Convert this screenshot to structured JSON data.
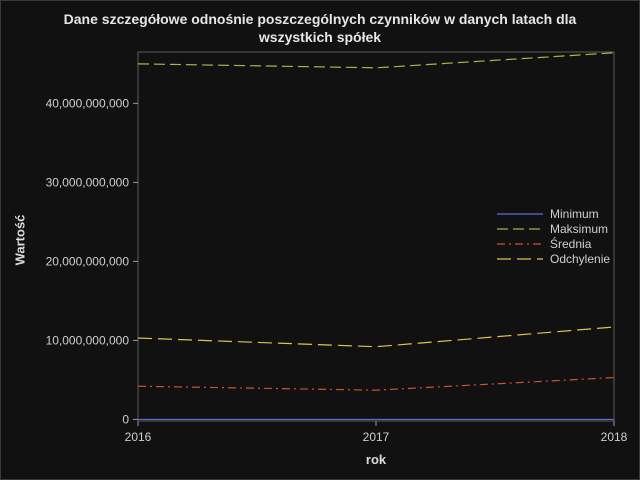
{
  "chart_data": {
    "type": "line",
    "title_line1": "Dane szczegółowe odnośnie poszczególnych czynników w danych latach dla",
    "title_line2": "wszystkich spółek",
    "xlabel": "rok",
    "ylabel": "Wartość",
    "x": [
      2016,
      2017,
      2018
    ],
    "x_tick_labels": [
      "2016",
      "2017",
      "2018"
    ],
    "y_ticks": [
      0,
      10000000000,
      20000000000,
      30000000000,
      40000000000
    ],
    "y_tick_labels": [
      "0",
      "10,000,000,000",
      "20,000,000,000",
      "30,000,000,000",
      "40,000,000,000"
    ],
    "ylim": [
      -200000000,
      46500000000
    ],
    "xlim": [
      2016,
      2018
    ],
    "grid": false,
    "legend_position": "right",
    "series": [
      {
        "name": "Minimum",
        "values": [
          0,
          0,
          0
        ],
        "color": "#5b6fd6",
        "dash": "solid"
      },
      {
        "name": "Maksimum",
        "values": [
          45000000000,
          44500000000,
          46400000000
        ],
        "color": "#a8b34a",
        "dash": "long-dash"
      },
      {
        "name": "Średnia",
        "values": [
          4200000000,
          3700000000,
          5300000000
        ],
        "color": "#c9542e",
        "dash": "dash-dot"
      },
      {
        "name": "Odchylenie",
        "values": [
          10300000000,
          9200000000,
          11700000000
        ],
        "color": "#e0c451",
        "dash": "long-dash-wide"
      }
    ]
  }
}
